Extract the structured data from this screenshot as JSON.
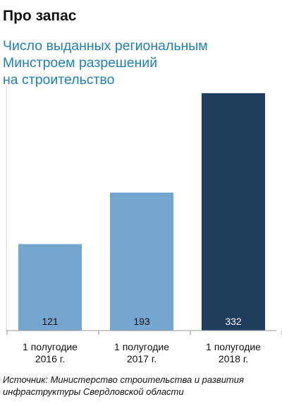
{
  "header": {
    "title": "Про запас",
    "subtitle_lines": [
      "Число выданных региональным",
      "Минстроем разрешений",
      "на строительство"
    ]
  },
  "chart_data": {
    "type": "bar",
    "categories": [
      [
        "1 полугодие",
        "2016 г."
      ],
      [
        "1 полугодие",
        "2017 г."
      ],
      [
        "1 полугодие",
        "2018 г."
      ]
    ],
    "values": [
      121,
      193,
      332
    ],
    "value_labels": [
      "121",
      "193",
      "332"
    ],
    "ylim": [
      0,
      332
    ],
    "grid": false,
    "colors": [
      "#75a6d0",
      "#75a6d0",
      "#1e3d5c"
    ]
  },
  "footer": {
    "source_lines": [
      "Источник: Министерство строительства и развития",
      "инфраструктуры Свердловской области"
    ]
  }
}
